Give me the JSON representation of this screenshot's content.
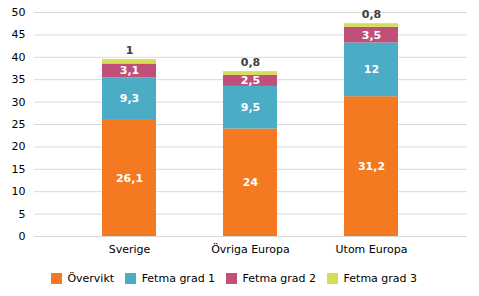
{
  "chart_data": {
    "type": "bar",
    "stacked": true,
    "categories": [
      "Sverige",
      "Övriga Europa",
      "Utom Europa"
    ],
    "series": [
      {
        "name": "Övervikt",
        "color": "#F47920",
        "values": [
          26.1,
          24.0,
          31.2
        ],
        "value_labels": [
          "26,1",
          "24",
          "31,2"
        ]
      },
      {
        "name": "Fetma grad 1",
        "color": "#4BACC6",
        "values": [
          9.3,
          9.5,
          12.0
        ],
        "value_labels": [
          "9,3",
          "9,5",
          "12"
        ]
      },
      {
        "name": "Fetma grad 2",
        "color": "#C0507A",
        "values": [
          3.1,
          2.5,
          3.5
        ],
        "value_labels": [
          "3,1",
          "2,5",
          "3,5"
        ]
      },
      {
        "name": "Fetma grad 3",
        "color": "#D4DE52",
        "values": [
          1.0,
          0.8,
          0.8
        ],
        "value_labels": [
          "1",
          "0,8",
          "0,8"
        ]
      }
    ],
    "ylim": [
      0,
      50
    ],
    "yticks": [
      0,
      5,
      10,
      15,
      20,
      25,
      30,
      35,
      40,
      45,
      50
    ],
    "grid": true,
    "data_labels": true,
    "legend": "bottom"
  }
}
